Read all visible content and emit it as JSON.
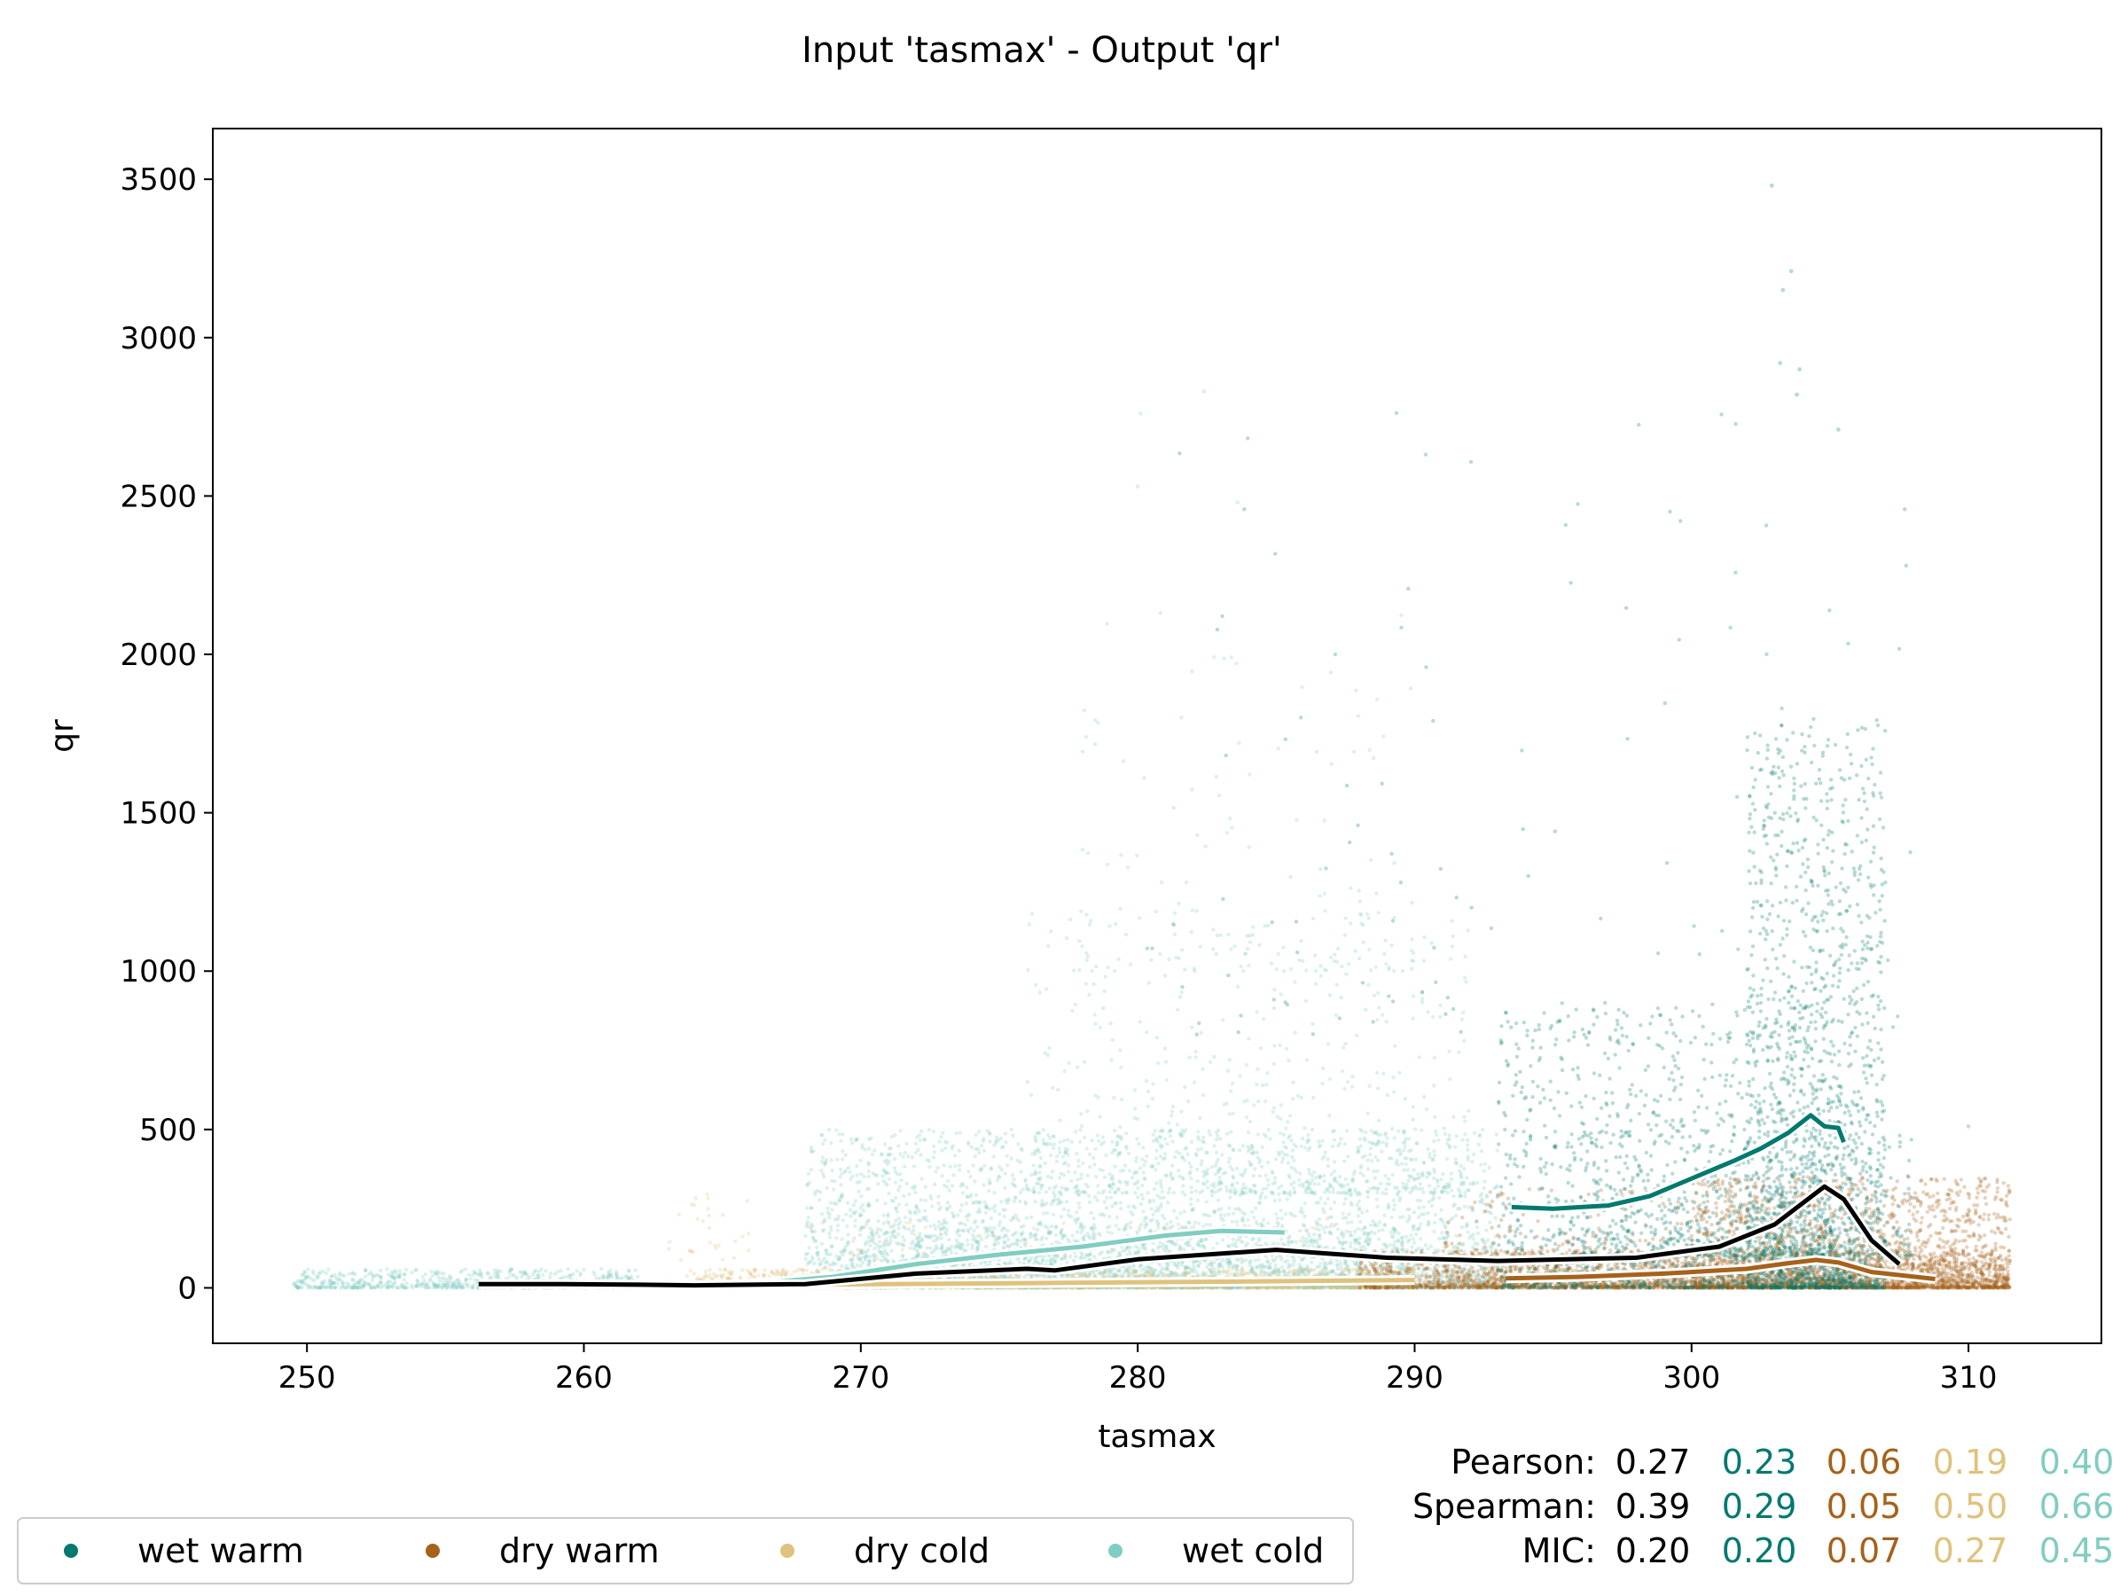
{
  "chart_data": {
    "type": "scatter",
    "title": "Input 'tasmax' - Output 'qr'",
    "xlabel": "tasmax",
    "ylabel": "qr",
    "xlim": [
      246.6,
      314.8
    ],
    "ylim": [
      -175,
      3660
    ],
    "xticks": [
      250,
      260,
      270,
      280,
      290,
      300,
      310
    ],
    "yticks": [
      0,
      500,
      1000,
      1500,
      2000,
      2500,
      3000,
      3500
    ],
    "grid": false,
    "legend_position": "bottom-left",
    "series": [
      {
        "name": "wet warm",
        "color": "#01796f",
        "density": [
          {
            "x": [
              293,
              306
            ],
            "y": [
              0,
              900
            ],
            "n": 1400
          },
          {
            "x": [
              302,
              307
            ],
            "y": [
              0,
              1800
            ],
            "n": 1500
          },
          {
            "x": [
              296,
              308
            ],
            "y": [
              100,
              500
            ],
            "n": 500
          },
          {
            "x": [
              280,
              308
            ],
            "y": [
              800,
              2800
            ],
            "n": 120
          }
        ],
        "outliers": [
          [
            302.9,
            3480
          ],
          [
            303.3,
            3150
          ],
          [
            303.6,
            3210
          ],
          [
            303.2,
            2920
          ],
          [
            303.9,
            2900
          ],
          [
            303.8,
            2820
          ],
          [
            305.3,
            2710
          ]
        ],
        "trend": {
          "x": [
            293.5,
            295,
            297,
            298.5,
            300,
            301.5,
            302.5,
            303.5,
            304.3,
            304.8,
            305.3,
            305.5
          ],
          "y": [
            255,
            250,
            260,
            290,
            345,
            400,
            440,
            490,
            545,
            510,
            505,
            460
          ]
        }
      },
      {
        "name": "dry warm",
        "color": "#a6611a",
        "density": [
          {
            "x": [
              288,
              311.5
            ],
            "y": [
              0,
              120
            ],
            "n": 2600
          },
          {
            "x": [
              300,
              311.5
            ],
            "y": [
              0,
              350
            ],
            "n": 1800
          },
          {
            "x": [
              291,
              305
            ],
            "y": [
              0,
              320
            ],
            "n": 500
          }
        ],
        "outliers": [
          [
            310,
            510
          ]
        ],
        "trend": {
          "x": [
            293.3,
            296,
            299,
            302,
            303.5,
            304.5,
            305.3,
            306.5,
            308.8
          ],
          "y": [
            30,
            35,
            45,
            60,
            78,
            88,
            80,
            50,
            28
          ]
        }
      },
      {
        "name": "dry cold",
        "color": "#dfc27d",
        "density": [
          {
            "x": [
              264,
              290
            ],
            "y": [
              0,
              60
            ],
            "n": 1600
          },
          {
            "x": [
              263,
              266
            ],
            "y": [
              0,
              320
            ],
            "n": 60
          },
          {
            "x": [
              268,
              290
            ],
            "y": [
              0,
              220
            ],
            "n": 160
          }
        ],
        "outliers": [],
        "trend": {
          "x": [
            262.3,
            268,
            276,
            284,
            290
          ],
          "y": [
            8,
            10,
            15,
            20,
            25
          ]
        }
      },
      {
        "name": "wet cold",
        "color": "#80cdc1",
        "density": [
          {
            "x": [
              249.5,
              262
            ],
            "y": [
              0,
              60
            ],
            "n": 700
          },
          {
            "x": [
              268,
              293
            ],
            "y": [
              0,
              500
            ],
            "n": 3500
          },
          {
            "x": [
              270,
              290
            ],
            "y": [
              0,
              200
            ],
            "n": 1600
          },
          {
            "x": [
              276,
              292
            ],
            "y": [
              300,
              1200
            ],
            "n": 600
          },
          {
            "x": [
              278,
              290
            ],
            "y": [
              1000,
              2150
            ],
            "n": 120
          }
        ],
        "outliers": [
          [
            280.1,
            2760
          ],
          [
            282.4,
            2830
          ],
          [
            280,
            2530
          ],
          [
            283.6,
            2480
          ]
        ],
        "trend": {
          "x": [
            262.3,
            266,
            269,
            272,
            275,
            278,
            281,
            283,
            285.3
          ],
          "y": [
            5,
            12,
            35,
            75,
            105,
            130,
            165,
            180,
            175
          ]
        }
      }
    ],
    "overall_trend": {
      "x": [
        256.2,
        259,
        262,
        264,
        268,
        272,
        276,
        277,
        280,
        285,
        289,
        293,
        298,
        301,
        303,
        304.2,
        304.8,
        305.5,
        306.5,
        307.5
      ],
      "y": [
        12,
        12,
        10,
        8,
        12,
        45,
        60,
        55,
        90,
        120,
        95,
        85,
        95,
        130,
        200,
        280,
        320,
        280,
        150,
        75
      ]
    },
    "stats": {
      "labels": [
        "Pearson:",
        "Spearman:",
        "MIC:"
      ],
      "values": [
        [
          "0.27",
          "0.23",
          "0.06",
          "0.19",
          "0.40"
        ],
        [
          "0.39",
          "0.29",
          "0.05",
          "0.50",
          "0.66"
        ],
        [
          "0.20",
          "0.20",
          "0.07",
          "0.27",
          "0.45"
        ]
      ],
      "colors": [
        "#000000",
        "#01796f",
        "#a6611a",
        "#dfc27d",
        "#80cdc1"
      ]
    }
  }
}
